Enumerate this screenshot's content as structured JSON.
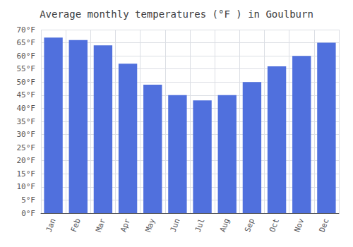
{
  "chart_data": {
    "type": "bar",
    "title": "Average monthly temperatures (°F ) in Goulburn",
    "categories": [
      "Jan",
      "Feb",
      "Mar",
      "Apr",
      "May",
      "Jun",
      "Jul",
      "Aug",
      "Sep",
      "Oct",
      "Nov",
      "Dec"
    ],
    "values": [
      67,
      66,
      64,
      57,
      49,
      45,
      43,
      45,
      50,
      56,
      60,
      65
    ],
    "ylim": [
      0,
      70
    ],
    "yticks": [
      {
        "value": 0,
        "label": "0°F"
      },
      {
        "value": 5,
        "label": "5°F"
      },
      {
        "value": 10,
        "label": "10°F"
      },
      {
        "value": 15,
        "label": "15°F"
      },
      {
        "value": 20,
        "label": "20°F"
      },
      {
        "value": 25,
        "label": "25°F"
      },
      {
        "value": 30,
        "label": "30°F"
      },
      {
        "value": 35,
        "label": "35°F"
      },
      {
        "value": 40,
        "label": "40°F"
      },
      {
        "value": 45,
        "label": "45°F"
      },
      {
        "value": 50,
        "label": "50°F"
      },
      {
        "value": 55,
        "label": "55°F"
      },
      {
        "value": 60,
        "label": "60°F"
      },
      {
        "value": 65,
        "label": "65°F"
      },
      {
        "value": 70,
        "label": "70°F"
      }
    ],
    "grid": true
  }
}
